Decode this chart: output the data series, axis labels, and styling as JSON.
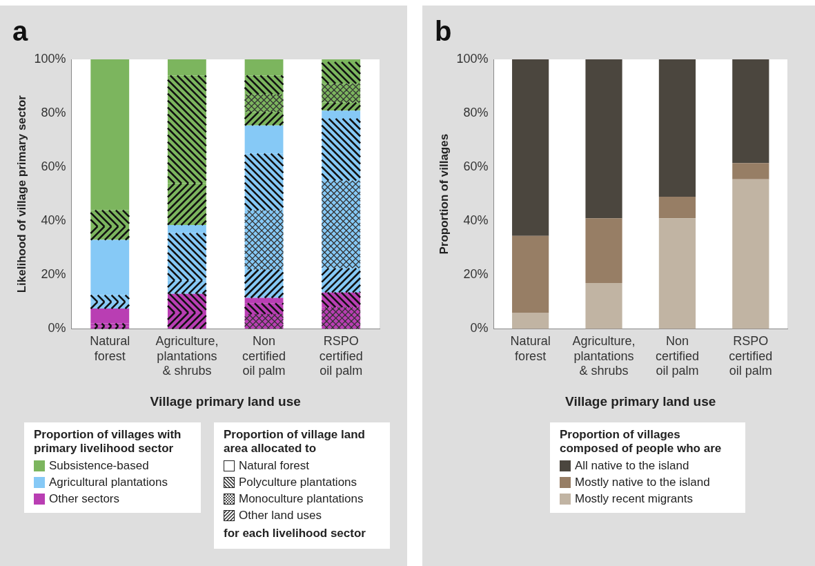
{
  "chart_data": [
    {
      "type": "bar",
      "title": "a",
      "xlabel": "Village primary land use",
      "ylabel": "Likelihood of village primary sector",
      "categories": [
        "Natural forest",
        "Agriculture, plantations & shrubs",
        "Non certified oil palm",
        "RSPO certified oil palm"
      ],
      "stacked": true,
      "ylim": [
        0,
        100
      ],
      "yticks": [
        {
          "value": 0,
          "label": "0%"
        },
        {
          "value": 20,
          "label": "20%"
        },
        {
          "value": 40,
          "label": "40%"
        },
        {
          "value": 60,
          "label": "60%"
        },
        {
          "value": 80,
          "label": "80%"
        },
        {
          "value": 100,
          "label": "100%"
        }
      ],
      "legend": "bottom",
      "legend_title": "Proportion of villages with primary livelihood sector",
      "annotations": [
        "Proportion of village land area allocated to",
        "Natural forest",
        "Polyculture plantations",
        "Monoculture plantations",
        "Other land uses",
        "for each livelihood sector"
      ],
      "series": [
        {
          "name": "Other sectors",
          "color": "#b93eb3",
          "values": [
            1,
            6,
            0,
            0
          ]
        },
        {
          "color": "#b93eb3",
          "values": [
            0,
            0,
            5.5,
            8
          ]
        },
        {
          "color": "#b93eb3",
          "values": [
            1,
            7,
            4,
            5.5
          ]
        },
        {
          "color": "#b93eb3",
          "values": [
            5.5,
            0,
            2,
            0
          ]
        },
        {
          "name": "Agricultural plantations",
          "color": "#86c9f6",
          "values": [
            2.5,
            5,
            10.5,
            9
          ]
        },
        {
          "color": "#86c9f6",
          "values": [
            0,
            0,
            22,
            32.5
          ]
        },
        {
          "color": "#86c9f6",
          "values": [
            2.5,
            17.5,
            21,
            23
          ]
        },
        {
          "color": "#86c9f6",
          "values": [
            20.5,
            3,
            10.5,
            3
          ]
        },
        {
          "name": "Subsistence-based",
          "color": "#7cb55e",
          "values": [
            5,
            15.5,
            5,
            3
          ]
        },
        {
          "color": "#7cb55e",
          "values": [
            0,
            0,
            6.5,
            7
          ]
        },
        {
          "color": "#7cb55e",
          "values": [
            6,
            40,
            7,
            8
          ]
        },
        {
          "color": "#7cb55e",
          "values": [
            56,
            6,
            6,
            1
          ]
        }
      ]
    },
    {
      "type": "bar",
      "title": "b",
      "xlabel": "Village primary land use",
      "ylabel": "Proportion of villages",
      "categories": [
        "Natural forest",
        "Agriculture, plantations & shrubs",
        "Non certified oil palm",
        "RSPO certified oil palm"
      ],
      "stacked": true,
      "ylim": [
        0,
        100
      ],
      "yticks": [
        {
          "value": 0,
          "label": "0%"
        },
        {
          "value": 20,
          "label": "20%"
        },
        {
          "value": 40,
          "label": "40%"
        },
        {
          "value": 60,
          "label": "60%"
        },
        {
          "value": 80,
          "label": "80%"
        },
        {
          "value": 100,
          "label": "100%"
        }
      ],
      "legend": "bottom",
      "legend_title": "Proportion of villages composed of people who are",
      "series": [
        {
          "name": "Mostly recent migrants",
          "color": "#c1b4a3",
          "values": [
            6,
            17,
            41,
            55.5
          ]
        },
        {
          "name": "Mostly native to the island",
          "color": "#977e65",
          "values": [
            28.5,
            24,
            8,
            6
          ]
        },
        {
          "name": "All native to the island",
          "color": "#4b463e",
          "values": [
            65.5,
            59,
            51,
            38.5
          ]
        }
      ]
    }
  ]
}
